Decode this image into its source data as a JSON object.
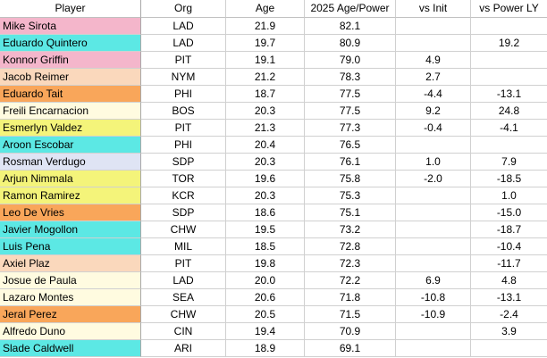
{
  "table": {
    "headers": {
      "player": "Player",
      "org": "Org",
      "age": "Age",
      "power": "2025 Age/Power",
      "vs_init": "vs Init",
      "vs_power_ly": "vs Power LY"
    },
    "rows": [
      {
        "player": "Mike Sirota",
        "org": "LAD",
        "age": "21.9",
        "power": "82.1",
        "vs_init": "",
        "vs_power_ly": "",
        "color": "#f4b6cb"
      },
      {
        "player": "Eduardo Quintero",
        "org": "LAD",
        "age": "19.7",
        "power": "80.9",
        "vs_init": "",
        "vs_power_ly": "19.2",
        "color": "#5ce8e4"
      },
      {
        "player": "Konnor Griffin",
        "org": "PIT",
        "age": "19.1",
        "power": "79.0",
        "vs_init": "4.9",
        "vs_power_ly": "",
        "color": "#f4b6cb"
      },
      {
        "player": "Jacob Reimer",
        "org": "NYM",
        "age": "21.2",
        "power": "78.3",
        "vs_init": "2.7",
        "vs_power_ly": "",
        "color": "#fad8bc"
      },
      {
        "player": "Eduardo Tait",
        "org": "PHI",
        "age": "18.7",
        "power": "77.5",
        "vs_init": "-4.4",
        "vs_power_ly": "-13.1",
        "color": "#f9a65a"
      },
      {
        "player": "Freili Encarnacion",
        "org": "BOS",
        "age": "20.3",
        "power": "77.5",
        "vs_init": "9.2",
        "vs_power_ly": "24.8",
        "color": "#fffbe0"
      },
      {
        "player": "Esmerlyn Valdez",
        "org": "PIT",
        "age": "21.3",
        "power": "77.3",
        "vs_init": "-0.4",
        "vs_power_ly": "-4.1",
        "color": "#f4f47a"
      },
      {
        "player": "Aroon Escobar",
        "org": "PHI",
        "age": "20.4",
        "power": "76.5",
        "vs_init": "",
        "vs_power_ly": "",
        "color": "#5ce8e4"
      },
      {
        "player": "Rosman Verdugo",
        "org": "SDP",
        "age": "20.3",
        "power": "76.1",
        "vs_init": "1.0",
        "vs_power_ly": "7.9",
        "color": "#dfe4f4"
      },
      {
        "player": "Arjun Nimmala",
        "org": "TOR",
        "age": "19.6",
        "power": "75.8",
        "vs_init": "-2.0",
        "vs_power_ly": "-18.5",
        "color": "#f4f47a"
      },
      {
        "player": "Ramon Ramirez",
        "org": "KCR",
        "age": "20.3",
        "power": "75.3",
        "vs_init": "",
        "vs_power_ly": "1.0",
        "color": "#f4f47a"
      },
      {
        "player": "Leo De Vries",
        "org": "SDP",
        "age": "18.6",
        "power": "75.1",
        "vs_init": "",
        "vs_power_ly": "-15.0",
        "color": "#f9a65a"
      },
      {
        "player": "Javier Mogollon",
        "org": "CHW",
        "age": "19.5",
        "power": "73.2",
        "vs_init": "",
        "vs_power_ly": "-18.7",
        "color": "#5ce8e4"
      },
      {
        "player": "Luis Pena",
        "org": "MIL",
        "age": "18.5",
        "power": "72.8",
        "vs_init": "",
        "vs_power_ly": "-10.4",
        "color": "#5ce8e4"
      },
      {
        "player": "Axiel Plaz",
        "org": "PIT",
        "age": "19.8",
        "power": "72.3",
        "vs_init": "",
        "vs_power_ly": "-11.7",
        "color": "#fad8bc"
      },
      {
        "player": "Josue de Paula",
        "org": "LAD",
        "age": "20.0",
        "power": "72.2",
        "vs_init": "6.9",
        "vs_power_ly": "4.8",
        "color": "#fffbe0"
      },
      {
        "player": "Lazaro Montes",
        "org": "SEA",
        "age": "20.6",
        "power": "71.8",
        "vs_init": "-10.8",
        "vs_power_ly": "-13.1",
        "color": "#fffbe0"
      },
      {
        "player": "Jeral Perez",
        "org": "CHW",
        "age": "20.5",
        "power": "71.5",
        "vs_init": "-10.9",
        "vs_power_ly": "-2.4",
        "color": "#f9a65a"
      },
      {
        "player": "Alfredo Duno",
        "org": "CIN",
        "age": "19.4",
        "power": "70.9",
        "vs_init": "",
        "vs_power_ly": "3.9",
        "color": "#fffbe0"
      },
      {
        "player": "Slade Caldwell",
        "org": "ARI",
        "age": "18.9",
        "power": "69.1",
        "vs_init": "",
        "vs_power_ly": "",
        "color": "#5ce8e4"
      }
    ]
  }
}
